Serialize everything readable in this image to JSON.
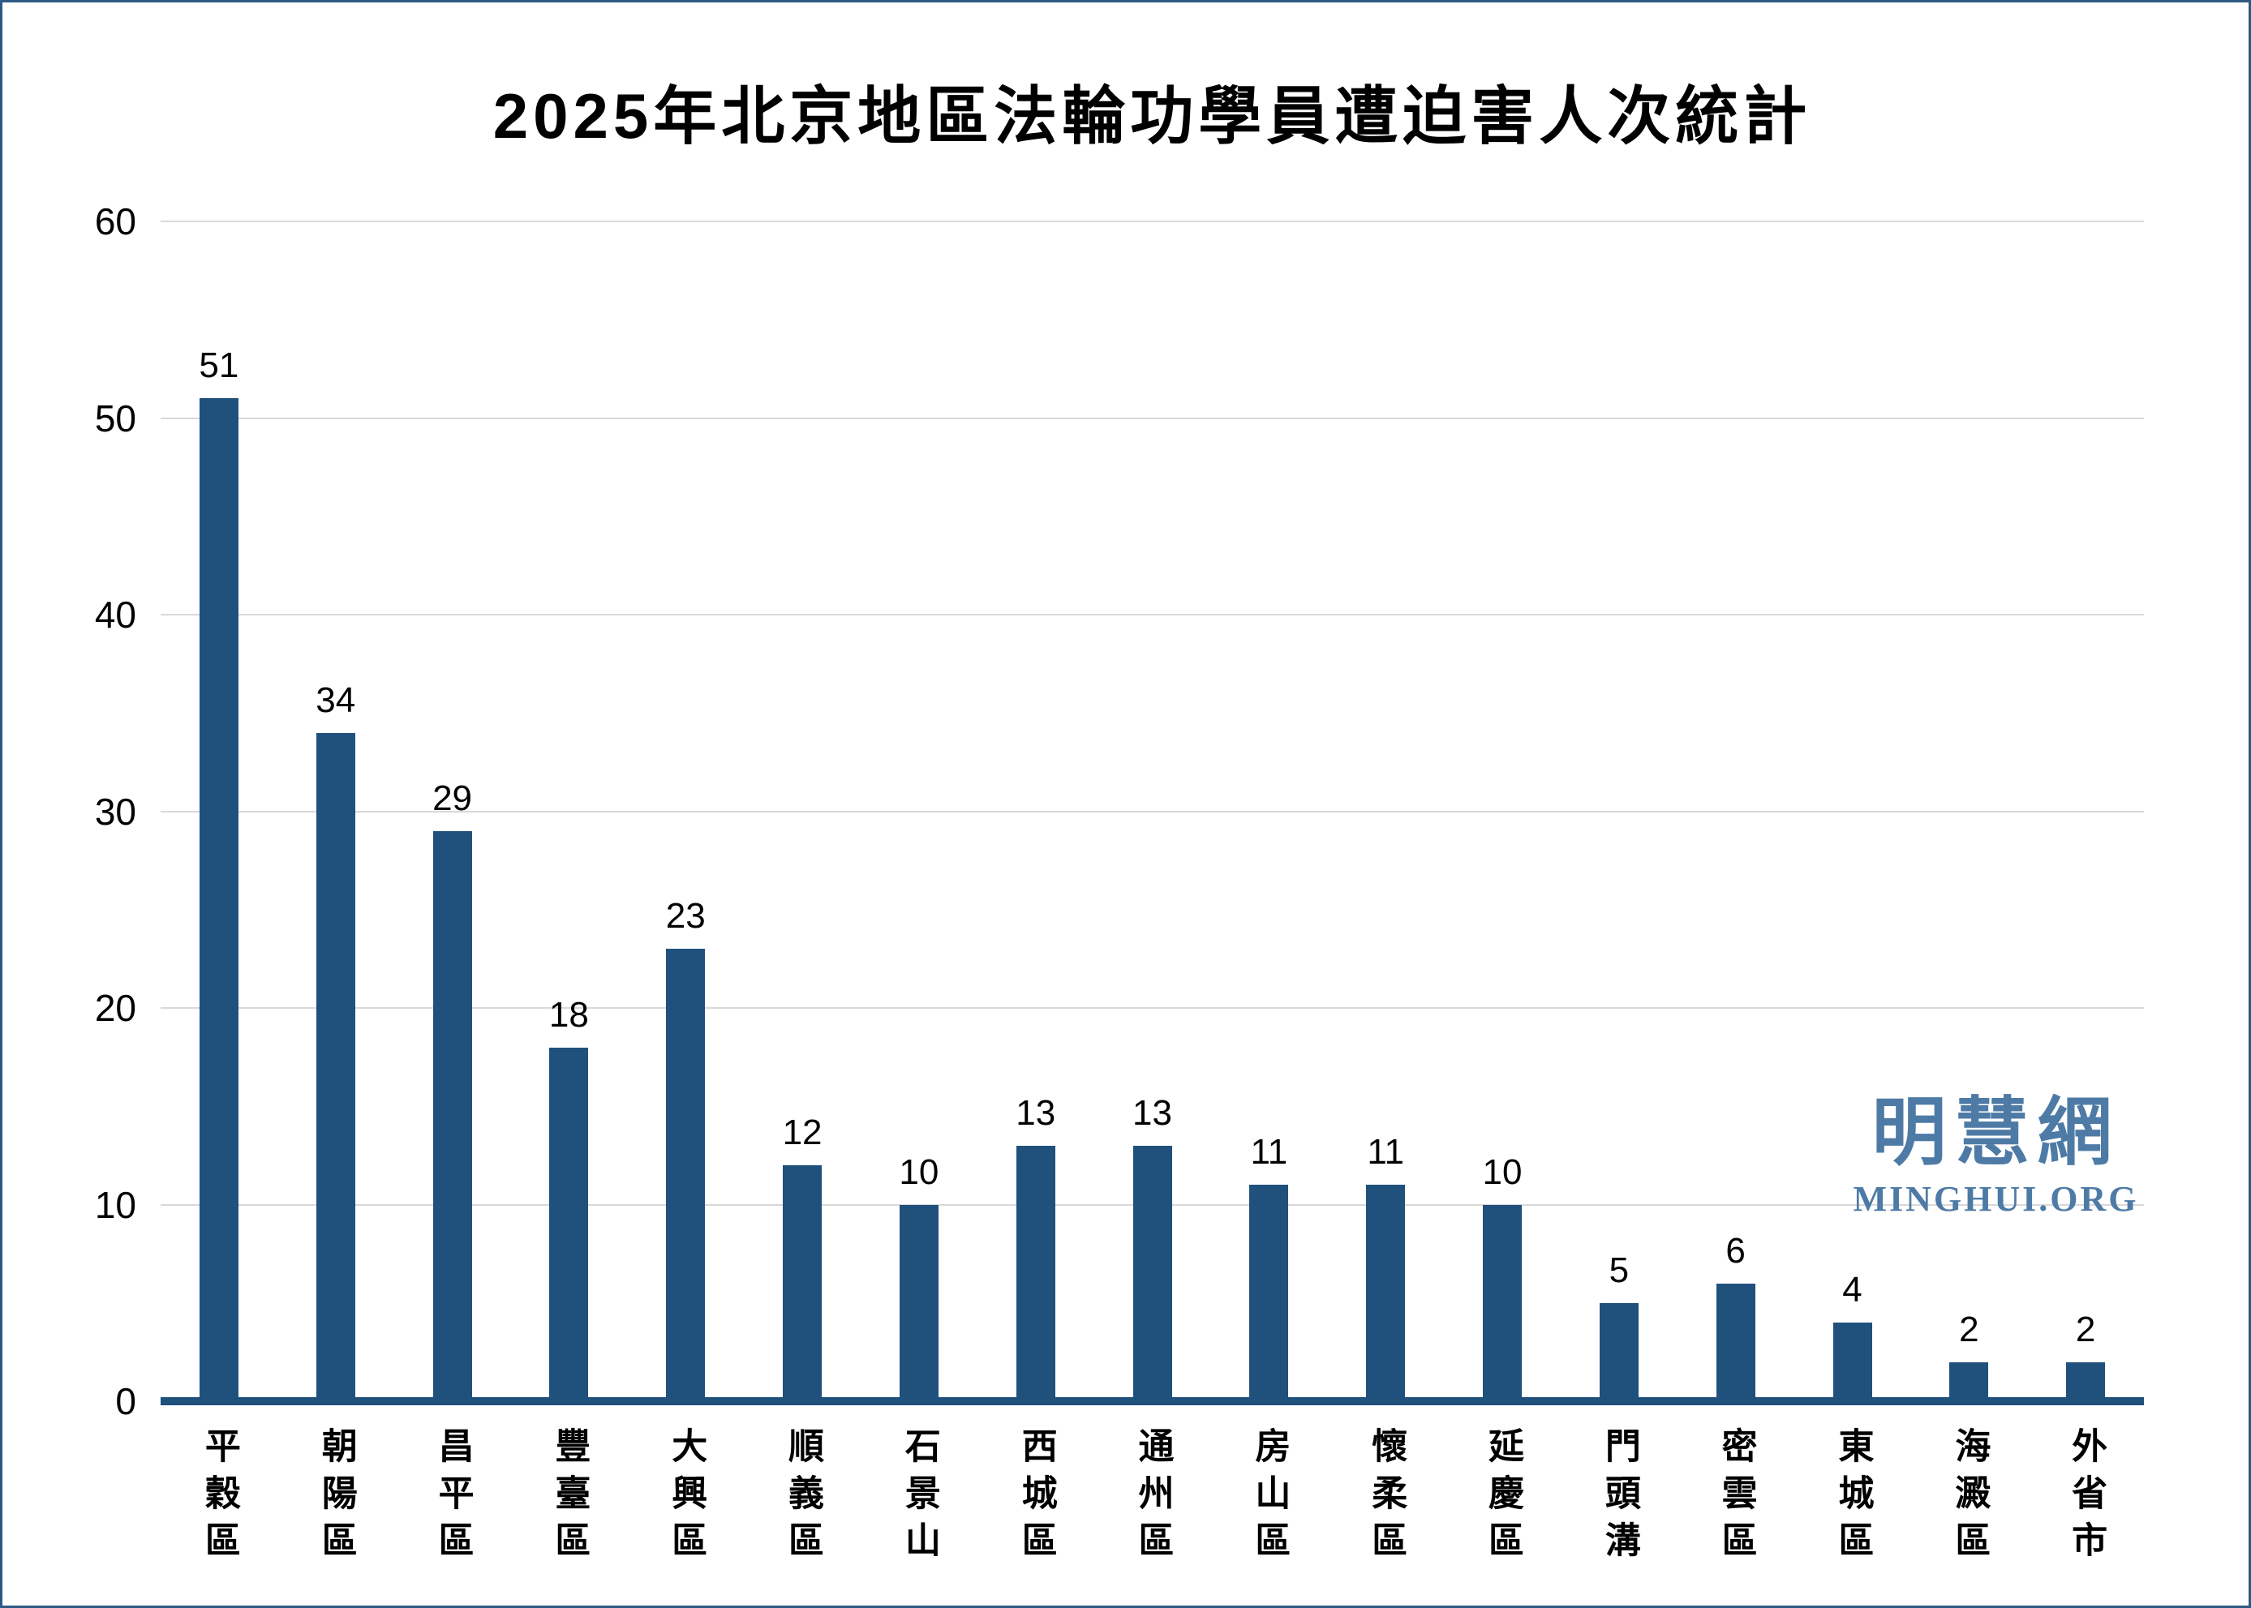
{
  "page": {
    "background_color": "#FFFFFF",
    "border_color": "#2E5984"
  },
  "title": "2025年北京地區法輪功學員遭迫害人次統計",
  "watermark": {
    "site_name_cjk": "明慧網",
    "site_name_latin": "MINGHUI.ORG",
    "color": "#4E7BA6"
  },
  "colors": {
    "bar": "#20507C",
    "axis_line": "#20507C",
    "gridline": "#D9D9D9",
    "label_text": "#000000"
  },
  "chart_data": {
    "type": "bar",
    "title": "2025年北京地區法輪功學員遭迫害人次統計",
    "categories": [
      "平穀區",
      "朝陽區",
      "昌平區",
      "豐臺區",
      "大興區",
      "順義區",
      "石景山",
      "西城區",
      "通州區",
      "房山區",
      "懷柔區",
      "延慶區",
      "門頭溝",
      "密雲區",
      "東城區",
      "海澱區",
      "外省市"
    ],
    "values": [
      51,
      34,
      29,
      18,
      23,
      12,
      10,
      13,
      13,
      11,
      11,
      10,
      5,
      6,
      4,
      2,
      2
    ],
    "xlabel": "",
    "ylabel": "",
    "ylim": [
      0,
      60
    ],
    "yticks": [
      0,
      10,
      20,
      30,
      40,
      50,
      60
    ],
    "grid": "horizontal",
    "legend": "none",
    "data_labels": true,
    "bar_color": "#20507C"
  }
}
